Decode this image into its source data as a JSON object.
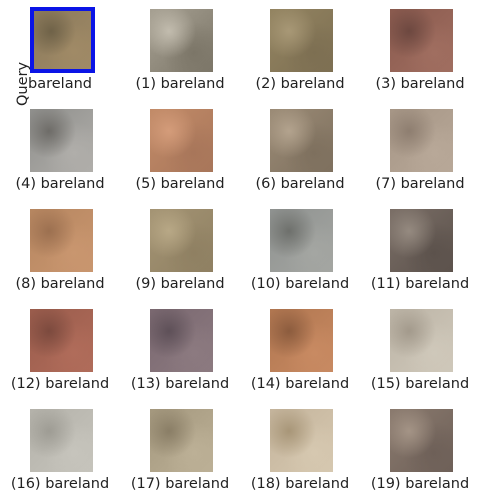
{
  "query": {
    "side_label": "Query",
    "caption": "bareland",
    "colors": [
      "#8b7a5c",
      "#a08a66",
      "#6f6248"
    ]
  },
  "results": [
    {
      "caption": "(1) bareland",
      "colors": [
        "#a6a092",
        "#7c7668",
        "#c2bcae"
      ]
    },
    {
      "caption": "(2) bareland",
      "colors": [
        "#938461",
        "#7d6f52",
        "#a89876"
      ]
    },
    {
      "caption": "(3) bareland",
      "colors": [
        "#8a5a4e",
        "#a06e60",
        "#6d4840"
      ]
    },
    {
      "caption": "(4) bareland",
      "colors": [
        "#8f8f8c",
        "#b0aeaa",
        "#6e6c68"
      ]
    },
    {
      "caption": "(5) bareland",
      "colors": [
        "#c28b68",
        "#a8765a",
        "#d49c7a"
      ]
    },
    {
      "caption": "(6) bareland",
      "colors": [
        "#9b8b76",
        "#7e705e",
        "#b3a38e"
      ]
    },
    {
      "caption": "(7) bareland",
      "colors": [
        "#a69686",
        "#b8a898",
        "#8e7e70"
      ]
    },
    {
      "caption": "(8) bareland",
      "colors": [
        "#b68660",
        "#c9966f",
        "#9c7050"
      ]
    },
    {
      "caption": "(9) bareland",
      "colors": [
        "#a49474",
        "#8f8062",
        "#b8a886"
      ]
    },
    {
      "caption": "(10) bareland",
      "colors": [
        "#8f9290",
        "#a4a6a2",
        "#6e706c"
      ]
    },
    {
      "caption": "(11) bareland",
      "colors": [
        "#7a6e66",
        "#5c524c",
        "#958a80"
      ]
    },
    {
      "caption": "(12) bareland",
      "colors": [
        "#9a5c4c",
        "#b06c5a",
        "#7c4a3e"
      ]
    },
    {
      "caption": "(13) bareland",
      "colors": [
        "#7a6870",
        "#8c7a80",
        "#5e5058"
      ]
    },
    {
      "caption": "(14) bareland",
      "colors": [
        "#b07650",
        "#c88a62",
        "#8c5c3e"
      ]
    },
    {
      "caption": "(15) bareland",
      "colors": [
        "#bcb4a6",
        "#cfc8ba",
        "#a39a8c"
      ]
    },
    {
      "caption": "(16) bareland",
      "colors": [
        "#b4b2aa",
        "#c6c4bc",
        "#9e9c94"
      ]
    },
    {
      "caption": "(17) bareland",
      "colors": [
        "#a4987e",
        "#bcb096",
        "#8a7e66"
      ]
    },
    {
      "caption": "(18) bareland",
      "colors": [
        "#c4b49c",
        "#d6c8b0",
        "#a89678"
      ]
    },
    {
      "caption": "(19) bareland",
      "colors": [
        "#8a7a6e",
        "#6e6058",
        "#a49486"
      ]
    }
  ]
}
